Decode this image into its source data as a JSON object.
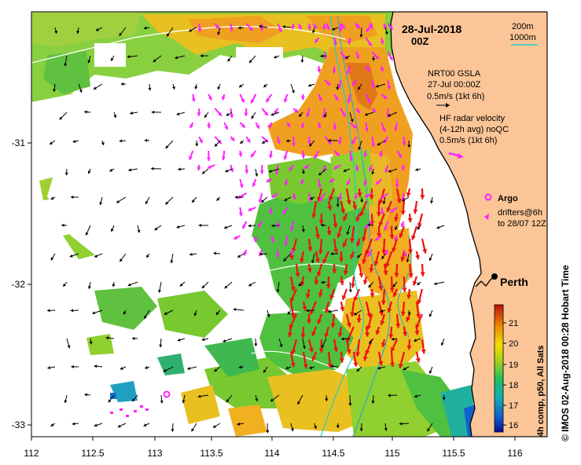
{
  "map": {
    "date": "28-Jul-2018",
    "hour": "00Z",
    "scale_200": "200m",
    "scale_1000": "1000m",
    "gsla_title": "NRT00 GSLA",
    "gsla_time": "27-Jul 00:00Z",
    "gsla_scale": "0.5m/s (1kt 6h)",
    "hf_title": "HF radar velocity",
    "hf_avg": "(4-12h avg) noQC",
    "hf_scale": "0.5m/s (1kt 6h)",
    "argo_label": "Argo",
    "drifter_label1": "drifters@6h",
    "drifter_label2": "to 28/07 12Z",
    "city": "Perth",
    "colorbar_label": "4h comp, p50, All Sats",
    "colorbar_ticks": [
      "16",
      "17",
      "18",
      "19",
      "20",
      "21"
    ],
    "credit": "© IMOS 02-Aug-2018 00:28 Hobart Time",
    "x_ticks": [
      "112",
      "112.5",
      "113",
      "113.5",
      "114",
      "114.5",
      "115",
      "115.5",
      "116"
    ],
    "y_ticks": [
      "-31",
      "-32",
      "-33"
    ]
  },
  "colors": {
    "land": "#fcc597",
    "hf_arrows": "#ff22ff",
    "red_arrows": "#ee1111",
    "bathy_200": "#33aacc",
    "bathy_1000": "#22cccc"
  }
}
